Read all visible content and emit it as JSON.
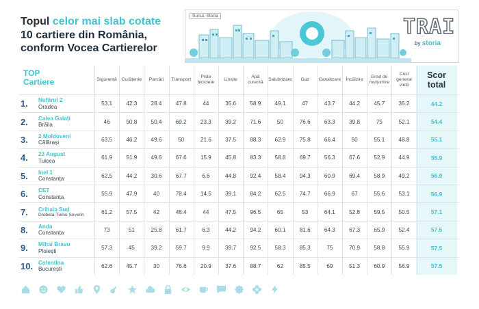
{
  "title": {
    "line1_prefix": "Topul ",
    "line1_accent": "celor mai slab cotate",
    "line2": "10 cartiere din România,",
    "line3": "conform Vocea Cartierelor"
  },
  "banner": {
    "source": "Sursa: Storia",
    "logo_text": "TRAI",
    "logo_sub_prefix": "by ",
    "logo_sub_brand": "storia"
  },
  "table": {
    "top_label_1": "TOP",
    "top_label_2": "Cartiere",
    "columns": [
      "Siguranță",
      "Curățenie",
      "Parcări",
      "Transport",
      "Piste biciclete",
      "Liniște",
      "Apă curentă",
      "Salubrizare",
      "Gaz",
      "Canalizare",
      "Încălzire",
      "Grad de mulțumire",
      "Cost general vieții"
    ],
    "score_header_1": "Scor",
    "score_header_2": "total",
    "rows": [
      {
        "rank": "1.",
        "name": "Nufărul 2",
        "city": "Oradea",
        "values": [
          "53.1",
          "42.3",
          "28.4",
          "47.8",
          "44",
          "35.6",
          "58.9",
          "49.1",
          "47",
          "43.7",
          "44.2",
          "45.7",
          "35.2"
        ],
        "score": "44.2"
      },
      {
        "rank": "2.",
        "name": "Calea Galați",
        "city": "Brăila",
        "values": [
          "46",
          "50.8",
          "50.4",
          "69.2",
          "23.3",
          "39.2",
          "71.6",
          "50",
          "76.6",
          "63.3",
          "39.8",
          "75",
          "52.1"
        ],
        "score": "54.4"
      },
      {
        "rank": "3.",
        "name": "2 Moldoveni",
        "city": "Călărași",
        "values": [
          "63.5",
          "46.2",
          "49.6",
          "50",
          "21.6",
          "37.5",
          "88.3",
          "62.9",
          "75.8",
          "66.4",
          "50",
          "55.1",
          "48.8"
        ],
        "score": "55.1"
      },
      {
        "rank": "4.",
        "name": "23 August",
        "city": "Tulcea",
        "values": [
          "61.9",
          "51.9",
          "49.6",
          "67.6",
          "15.9",
          "45.8",
          "83.3",
          "58.8",
          "69.7",
          "56.3",
          "67.6",
          "52.9",
          "44.9"
        ],
        "score": "55.9"
      },
      {
        "rank": "5.",
        "name": "Inel 1",
        "city": "Constanța",
        "values": [
          "62.5",
          "44.2",
          "30.6",
          "67.7",
          "6.6",
          "44.8",
          "92.4",
          "58.4",
          "94.3",
          "60.9",
          "69.4",
          "58.9",
          "49.2"
        ],
        "score": "56.9"
      },
      {
        "rank": "6.",
        "name": "CET",
        "city": "Constanța",
        "values": [
          "55.9",
          "47.9",
          "40",
          "78.4",
          "14.5",
          "39.1",
          "84.2",
          "62.5",
          "74.7",
          "66.9",
          "67",
          "55.6",
          "53.1"
        ],
        "score": "56.9"
      },
      {
        "rank": "7.",
        "name": "Crihala Sud",
        "city": "Drobeta-Turnu Severin",
        "small": true,
        "values": [
          "61.2",
          "57.5",
          "42",
          "48.4",
          "44",
          "47.5",
          "96.5",
          "65",
          "53",
          "64.1",
          "52.8",
          "59.5",
          "50.5"
        ],
        "score": "57.1"
      },
      {
        "rank": "8.",
        "name": "Anda",
        "city": "Constanța",
        "values": [
          "73",
          "51",
          "25.8",
          "61.7",
          "6.3",
          "44.2",
          "94.2",
          "60.1",
          "81.6",
          "64.3",
          "67.3",
          "65.9",
          "52.4"
        ],
        "score": "57.5"
      },
      {
        "rank": "9.",
        "name": "Mihai Bravu",
        "city": "Ploiești",
        "values": [
          "57.3",
          "45",
          "39.2",
          "59.7",
          "9.9",
          "39.7",
          "92.5",
          "58.3",
          "85.3",
          "75",
          "70.9",
          "58.8",
          "55.9"
        ],
        "score": "57.5"
      },
      {
        "rank": "10.",
        "name": "Colentina",
        "city": "București",
        "values": [
          "62.6",
          "45.7",
          "30",
          "76.6",
          "20.9",
          "37.6",
          "88.7",
          "62",
          "85.5",
          "69",
          "51.3",
          "60.9",
          "56.9"
        ],
        "score": "57.5"
      }
    ]
  },
  "icons": [
    "house-icon",
    "smiley-icon",
    "heart-icon",
    "thumbs-up-icon",
    "pin-icon",
    "key-icon",
    "star-icon",
    "cloud-icon",
    "lock-icon",
    "eye-icon",
    "cup-icon",
    "chat-icon",
    "badge-icon",
    "flower-icon",
    "bolt-icon"
  ],
  "colors": {
    "accent": "#3fc4d4",
    "score_bg": "#e6f7f9",
    "rank": "#2b5a8a",
    "icons": "#a9dde6"
  }
}
